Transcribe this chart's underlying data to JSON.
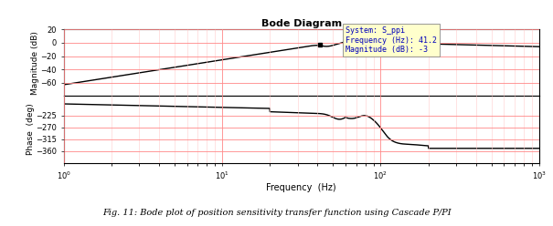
{
  "title": "Bode Diagram",
  "xlabel": "Frequency  (Hz)",
  "ylabel_mag": "Magnitude (dB)",
  "ylabel_phase": "Phase  (deg)",
  "caption": "Fig. 11: Bode plot of position sensitivity transfer function using Cascade P/PI",
  "freq_range": [
    1,
    1000
  ],
  "mag_ylim": [
    -80,
    20
  ],
  "mag_yticks": [
    -60,
    -40,
    -20,
    0,
    20
  ],
  "phase_ylim": [
    -405,
    -150
  ],
  "phase_yticks": [
    -360,
    -315,
    -270,
    -225
  ],
  "annotation_text_line1": "System: S_ppi",
  "annotation_text_line2": "Frequency (Hz): 41.2",
  "annotation_text_line3": "Magnitude (dB): -3",
  "ann_box_color": "#ffffcc",
  "ann_text_color": "#0000bb",
  "ann_freq": 41.2,
  "ann_mag": -3,
  "line_color": "#000000",
  "line_width": 1.0,
  "grid_major_color": "#ff8888",
  "grid_minor_color": "#ffcccc",
  "background_color": "#ffffff",
  "figsize": [
    6.05,
    2.48
  ],
  "dpi": 100
}
